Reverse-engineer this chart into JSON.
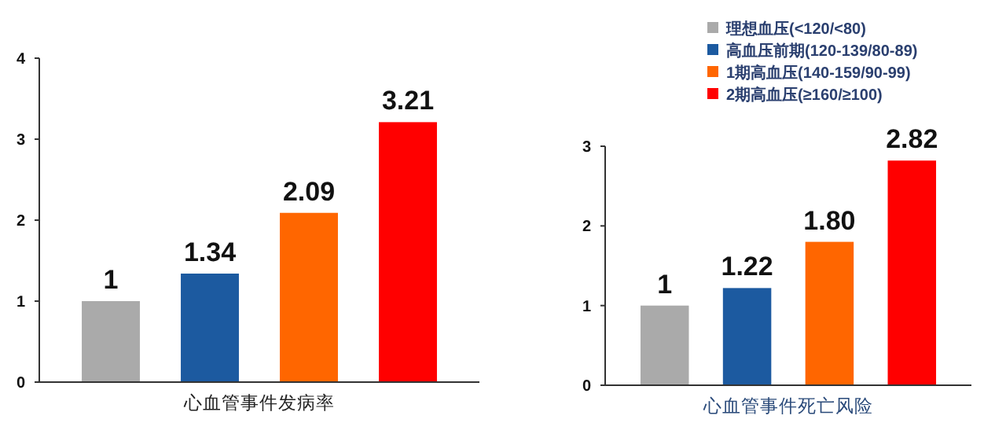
{
  "chart_data": [
    {
      "type": "bar",
      "xlabel": "心血管事件发病率",
      "categories": [
        null
      ],
      "ylim": [
        0,
        4
      ],
      "yticks": [
        0,
        1,
        2,
        3,
        4
      ],
      "series": [
        {
          "color": "#aaaaaa",
          "values": [
            1
          ],
          "value_labels": [
            "1"
          ]
        },
        {
          "color": "#1c5aa0",
          "values": [
            1.34
          ],
          "value_labels": [
            "1.34"
          ]
        },
        {
          "color": "#ff6600",
          "values": [
            2.09
          ],
          "value_labels": [
            "2.09"
          ]
        },
        {
          "color": "#ff0000",
          "values": [
            3.21
          ],
          "value_labels": [
            "3.21"
          ]
        }
      ]
    },
    {
      "type": "bar",
      "xlabel": "心血管事件死亡风险",
      "categories": [
        null
      ],
      "ylim": [
        0,
        3
      ],
      "yticks": [
        0,
        1,
        2,
        3
      ],
      "legend": "top right",
      "series": [
        {
          "name": "理想血压(<120/<80)",
          "color": "#aaaaaa",
          "values": [
            1
          ],
          "value_labels": [
            "1"
          ]
        },
        {
          "name": "高血压前期(120-139/80-89)",
          "color": "#1c5aa0",
          "values": [
            1.22
          ],
          "value_labels": [
            "1.22"
          ]
        },
        {
          "name": "1期高血压(140-159/90-99)",
          "color": "#ff6600",
          "values": [
            1.8
          ],
          "value_labels": [
            "1.80"
          ]
        },
        {
          "name": "2期高血压(≥160/≥100)",
          "color": "#ff0000",
          "values": [
            2.82
          ],
          "value_labels": [
            "2.82"
          ]
        }
      ]
    }
  ]
}
